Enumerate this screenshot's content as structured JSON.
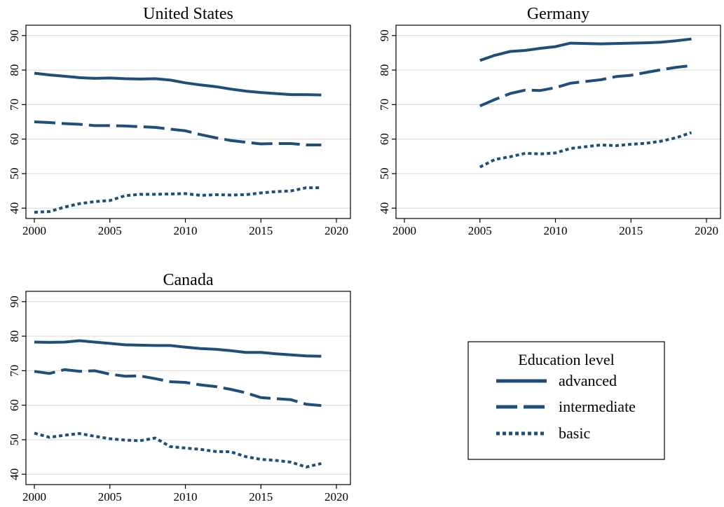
{
  "figure": {
    "legend": {
      "title": "Education level",
      "entries": [
        {
          "label": "advanced",
          "series": "advanced",
          "dash": "solid"
        },
        {
          "label": "intermediate",
          "series": "intermediate",
          "dash": "long-dash"
        },
        {
          "label": "basic",
          "series": "basic",
          "dash": "dot"
        }
      ],
      "placement": "bottom-right"
    },
    "colors": {
      "line": "#1f4e79",
      "grid": "#dddddd",
      "frame": "#000000"
    }
  },
  "chart_data": [
    {
      "type": "line",
      "title": "United States",
      "xlabel": "",
      "ylabel": "",
      "xlim": [
        2000,
        2020
      ],
      "ylim": [
        37,
        93
      ],
      "xticks": [
        2000,
        2005,
        2010,
        2015,
        2020
      ],
      "yticks": [
        40,
        50,
        60,
        70,
        80,
        90
      ],
      "grid": true,
      "x": [
        2000,
        2001,
        2002,
        2003,
        2004,
        2005,
        2006,
        2007,
        2008,
        2009,
        2010,
        2011,
        2012,
        2013,
        2014,
        2015,
        2016,
        2017,
        2018,
        2019
      ],
      "series": [
        {
          "name": "advanced",
          "values": [
            79.1,
            78.6,
            78.2,
            77.8,
            77.6,
            77.7,
            77.5,
            77.4,
            77.5,
            77.1,
            76.3,
            75.7,
            75.2,
            74.5,
            73.9,
            73.5,
            73.2,
            72.9,
            72.9,
            72.8
          ]
        },
        {
          "name": "intermediate",
          "values": [
            65.0,
            64.8,
            64.5,
            64.3,
            63.9,
            63.9,
            63.8,
            63.6,
            63.4,
            62.9,
            62.4,
            61.3,
            60.4,
            59.6,
            59.1,
            58.6,
            58.7,
            58.7,
            58.3,
            58.3
          ]
        },
        {
          "name": "basic",
          "values": [
            38.8,
            39.0,
            40.3,
            41.3,
            41.9,
            42.2,
            43.6,
            44.0,
            44.0,
            44.1,
            44.2,
            43.7,
            43.9,
            43.8,
            43.9,
            44.4,
            44.8,
            45.0,
            45.9,
            45.9
          ]
        }
      ]
    },
    {
      "type": "line",
      "title": "Germany",
      "xlabel": "",
      "ylabel": "",
      "xlim": [
        2000,
        2020
      ],
      "ylim": [
        37,
        93
      ],
      "xticks": [
        2000,
        2005,
        2010,
        2015,
        2020
      ],
      "yticks": [
        40,
        50,
        60,
        70,
        80,
        90
      ],
      "grid": true,
      "x": [
        2005,
        2006,
        2007,
        2008,
        2009,
        2010,
        2011,
        2012,
        2013,
        2014,
        2015,
        2016,
        2017,
        2018,
        2019
      ],
      "series": [
        {
          "name": "advanced",
          "values": [
            82.8,
            84.3,
            85.4,
            85.7,
            86.3,
            86.8,
            87.8,
            87.7,
            87.6,
            87.7,
            87.8,
            87.9,
            88.1,
            88.5,
            89.0
          ]
        },
        {
          "name": "intermediate",
          "values": [
            69.6,
            71.5,
            73.2,
            74.2,
            74.1,
            74.9,
            76.2,
            76.7,
            77.2,
            78.1,
            78.5,
            79.3,
            80.1,
            80.8,
            81.3
          ]
        },
        {
          "name": "basic",
          "values": [
            51.9,
            54.1,
            54.9,
            55.9,
            55.7,
            56.0,
            57.3,
            57.8,
            58.3,
            58.1,
            58.5,
            58.8,
            59.4,
            60.4,
            61.9
          ]
        }
      ]
    },
    {
      "type": "line",
      "title": "Canada",
      "xlabel": "",
      "ylabel": "",
      "xlim": [
        2000,
        2020
      ],
      "ylim": [
        37,
        93
      ],
      "xticks": [
        2000,
        2005,
        2010,
        2015,
        2020
      ],
      "yticks": [
        40,
        50,
        60,
        70,
        80,
        90
      ],
      "grid": true,
      "x": [
        2000,
        2001,
        2002,
        2003,
        2004,
        2005,
        2006,
        2007,
        2008,
        2009,
        2010,
        2011,
        2012,
        2013,
        2014,
        2015,
        2016,
        2017,
        2018,
        2019
      ],
      "series": [
        {
          "name": "advanced",
          "values": [
            78.3,
            78.2,
            78.3,
            78.7,
            78.3,
            77.9,
            77.5,
            77.4,
            77.3,
            77.3,
            76.8,
            76.4,
            76.2,
            75.8,
            75.3,
            75.3,
            74.9,
            74.6,
            74.3,
            74.2
          ]
        },
        {
          "name": "intermediate",
          "values": [
            69.8,
            69.2,
            70.3,
            69.8,
            70.0,
            69.0,
            68.4,
            68.5,
            67.7,
            66.8,
            66.6,
            65.9,
            65.4,
            64.6,
            63.6,
            62.2,
            61.9,
            61.6,
            60.3,
            59.9
          ]
        },
        {
          "name": "basic",
          "values": [
            51.9,
            50.7,
            51.3,
            51.8,
            51.0,
            50.3,
            49.9,
            49.7,
            50.5,
            48.0,
            47.6,
            47.2,
            46.6,
            46.5,
            45.1,
            44.3,
            44.0,
            43.5,
            42.1,
            43.1
          ]
        }
      ]
    }
  ]
}
